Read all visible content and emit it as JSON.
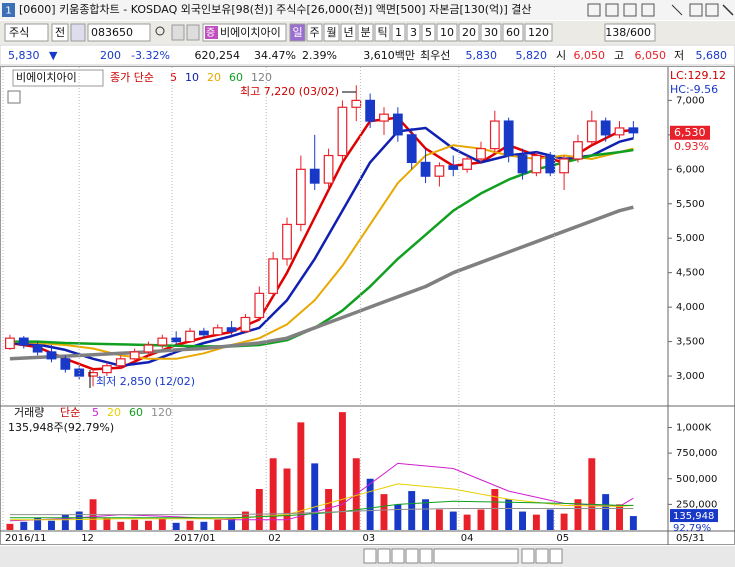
{
  "window": {
    "id": "1",
    "title": "[0600] 키움종합차트 - KOSDAQ 외국인보유[98(천)] 주식수[26,000(천)] 액면[500] 자본금[130(억)] 결산"
  },
  "toolbar": {
    "market": "주식",
    "prev": "전",
    "code": "083650",
    "badge": "증",
    "name": "비에이치아이",
    "periods": [
      "일",
      "주",
      "월",
      "년",
      "분",
      "틱",
      "1",
      "3",
      "5",
      "10",
      "20",
      "30",
      "60",
      "120"
    ],
    "count": "138/600"
  },
  "info": {
    "price": "5,830",
    "arrow": "▼",
    "change": "200",
    "rate": "-3.32%",
    "volume": "620,254",
    "turnover": "34.47%",
    "foreign": "2.39%",
    "amount": "3,610백만",
    "best_label": "최우선",
    "ask": "5,830",
    "bid": "5,820",
    "open_label": "시",
    "open": "6,050",
    "high_label": "고",
    "high": "6,050",
    "low_label": "저",
    "low": "5,680"
  },
  "chart_data": [
    {
      "type": "candlestick",
      "title": "비에이치아이",
      "subtitle": "종가 단순",
      "up_color": "#e8202a",
      "down_color": "#1838c8",
      "xlim": [
        -0.5,
        47.5
      ],
      "open": [
        3400,
        3550,
        3450,
        3350,
        3250,
        3100,
        3000,
        3050,
        3150,
        3250,
        3350,
        3450,
        3550,
        3500,
        3650,
        3600,
        3700,
        3650,
        3850,
        4200,
        4700,
        5200,
        6000,
        5800,
        6200,
        6900,
        7000,
        6700,
        6800,
        6500,
        6100,
        5900,
        6050,
        6000,
        6150,
        6300,
        6700,
        6200,
        5950,
        6200,
        5950,
        6150,
        6400,
        6700,
        6500,
        6600
      ],
      "high": [
        3600,
        3580,
        3500,
        3450,
        3300,
        3150,
        3100,
        3200,
        3300,
        3400,
        3500,
        3600,
        3650,
        3700,
        3700,
        3750,
        3800,
        3900,
        4300,
        4800,
        5300,
        6200,
        6500,
        6300,
        7000,
        7220,
        7100,
        6900,
        6900,
        6600,
        6300,
        6100,
        6200,
        6200,
        6400,
        6850,
        6750,
        6300,
        6250,
        6250,
        6200,
        6500,
        6850,
        6750,
        6700,
        6700
      ],
      "low": [
        3380,
        3400,
        3300,
        3200,
        3050,
        2950,
        2850,
        3000,
        3100,
        3200,
        3300,
        3400,
        3450,
        3480,
        3550,
        3580,
        3600,
        3620,
        3800,
        4150,
        4600,
        5100,
        5700,
        5700,
        6100,
        6700,
        6600,
        6500,
        6400,
        6000,
        5800,
        5750,
        5900,
        5950,
        6100,
        6250,
        6100,
        5850,
        5900,
        5900,
        5700,
        6100,
        6350,
        6400,
        6450,
        6450
      ],
      "close": [
        3550,
        3450,
        3350,
        3250,
        3100,
        3000,
        3050,
        3150,
        3250,
        3350,
        3450,
        3550,
        3500,
        3650,
        3600,
        3700,
        3650,
        3850,
        4200,
        4700,
        5200,
        6000,
        5800,
        6200,
        6900,
        7000,
        6700,
        6800,
        6500,
        6100,
        5900,
        6050,
        6000,
        6150,
        6300,
        6700,
        6200,
        5950,
        6200,
        5950,
        6150,
        6400,
        6700,
        6500,
        6600,
        6530
      ],
      "series": [
        {
          "name": "5",
          "color": "#e00000",
          "x": [
            0,
            2,
            4,
            6,
            8,
            10,
            12,
            14,
            16,
            18,
            20,
            22,
            24,
            26,
            28,
            30,
            32,
            34,
            36,
            38,
            40,
            42,
            44,
            45
          ],
          "values": [
            3480,
            3420,
            3250,
            3100,
            3120,
            3300,
            3450,
            3560,
            3640,
            3820,
            4500,
            5300,
            6100,
            6700,
            6750,
            6300,
            6050,
            6100,
            6350,
            6200,
            6100,
            6350,
            6550,
            6570
          ]
        },
        {
          "name": "10",
          "color": "#1020b0",
          "x": [
            0,
            2,
            4,
            6,
            8,
            10,
            12,
            14,
            16,
            18,
            20,
            22,
            24,
            26,
            28,
            30,
            32,
            34,
            36,
            38,
            40,
            42,
            44,
            45
          ],
          "values": [
            3480,
            3460,
            3380,
            3250,
            3150,
            3200,
            3350,
            3480,
            3580,
            3700,
            4100,
            4700,
            5400,
            6100,
            6550,
            6600,
            6300,
            6100,
            6200,
            6250,
            6150,
            6200,
            6400,
            6450
          ]
        },
        {
          "name": "20",
          "color": "#e8a800",
          "x": [
            0,
            2,
            4,
            6,
            8,
            10,
            12,
            14,
            16,
            18,
            20,
            22,
            24,
            26,
            28,
            30,
            32,
            34,
            36,
            38,
            40,
            42,
            44,
            45
          ],
          "values": [
            3500,
            3480,
            3450,
            3400,
            3300,
            3250,
            3250,
            3330,
            3450,
            3550,
            3750,
            4100,
            4600,
            5200,
            5800,
            6200,
            6350,
            6300,
            6200,
            6150,
            6200,
            6150,
            6250,
            6300
          ]
        },
        {
          "name": "60",
          "color": "#10a020",
          "x": [
            0,
            2,
            4,
            6,
            8,
            10,
            12,
            14,
            16,
            18,
            20,
            22,
            24,
            26,
            28,
            30,
            32,
            34,
            36,
            38,
            40,
            42,
            44,
            45
          ],
          "values": [
            3500,
            3500,
            3480,
            3470,
            3460,
            3450,
            3440,
            3430,
            3430,
            3450,
            3520,
            3700,
            3950,
            4300,
            4700,
            5050,
            5400,
            5650,
            5850,
            6000,
            6100,
            6200,
            6250,
            6280
          ]
        },
        {
          "name": "120",
          "color": "#808080",
          "x": [
            0,
            2,
            4,
            6,
            8,
            10,
            12,
            14,
            16,
            18,
            20,
            22,
            24,
            26,
            28,
            30,
            32,
            34,
            36,
            38,
            40,
            42,
            44,
            45
          ],
          "values": [
            3250,
            3270,
            3290,
            3310,
            3330,
            3350,
            3380,
            3400,
            3440,
            3480,
            3550,
            3700,
            3850,
            4000,
            4150,
            4300,
            4500,
            4650,
            4800,
            4950,
            5100,
            5250,
            5400,
            5450
          ]
        }
      ],
      "ylim": [
        2580,
        7470
      ],
      "yticks": [
        {
          "value": 3000,
          "label": "3,000"
        },
        {
          "value": 3500,
          "label": "3,500"
        },
        {
          "value": 4000,
          "label": "4,000"
        },
        {
          "value": 4500,
          "label": "4,500"
        },
        {
          "value": 5000,
          "label": "5,000"
        },
        {
          "value": 5500,
          "label": "5,500"
        },
        {
          "value": 6000,
          "label": "6,000"
        },
        {
          "value": 6500,
          "label": "6,500"
        },
        {
          "value": 7000,
          "label": "7,000"
        }
      ],
      "annotations": [
        "최고 7,220 (03/02)",
        "최저 2,850 (12/02)"
      ],
      "lc": "LC:129.12",
      "hc": "HC:-9.56",
      "last_label": "6,530",
      "change_label": "0.93%"
    },
    {
      "type": "bar",
      "title": "거래량",
      "subtitle": "단순",
      "caption": "135,948주(92.79%)",
      "xlim": [
        -0.5,
        47.5
      ],
      "values": [
        60000,
        80000,
        120000,
        90000,
        150000,
        180000,
        300000,
        120000,
        80000,
        100000,
        90000,
        110000,
        70000,
        90000,
        80000,
        100000,
        120000,
        180000,
        400000,
        700000,
        600000,
        1050000,
        650000,
        400000,
        1150000,
        700000,
        500000,
        350000,
        250000,
        380000,
        300000,
        200000,
        180000,
        150000,
        200000,
        400000,
        300000,
        180000,
        150000,
        200000,
        160000,
        300000,
        700000,
        350000,
        250000,
        135948
      ],
      "series": [
        {
          "name": "5",
          "color": "#d020d0",
          "x": [
            0,
            4,
            8,
            12,
            16,
            20,
            24,
            28,
            32,
            36,
            40,
            44,
            45
          ],
          "values": [
            90000,
            110000,
            150000,
            130000,
            100000,
            100000,
            250000,
            650000,
            600000,
            380000,
            260000,
            230000,
            310000
          ]
        },
        {
          "name": "20",
          "color": "#e8d000",
          "x": [
            0,
            4,
            8,
            12,
            16,
            20,
            24,
            28,
            32,
            36,
            40,
            44,
            45
          ],
          "values": [
            100000,
            100000,
            110000,
            110000,
            110000,
            150000,
            300000,
            450000,
            400000,
            300000,
            240000,
            230000,
            240000
          ]
        },
        {
          "name": "60",
          "color": "#10a020",
          "x": [
            0,
            4,
            8,
            12,
            16,
            20,
            24,
            28,
            32,
            36,
            40,
            44,
            45
          ],
          "values": [
            120000,
            120000,
            120000,
            120000,
            120000,
            140000,
            180000,
            250000,
            280000,
            270000,
            260000,
            240000,
            240000
          ]
        },
        {
          "name": "120",
          "color": "#909090",
          "x": [
            0,
            4,
            8,
            12,
            16,
            20,
            24,
            28,
            32,
            36,
            40,
            44,
            45
          ],
          "values": [
            150000,
            150000,
            150000,
            150000,
            150000,
            160000,
            180000,
            200000,
            210000,
            210000,
            210000,
            210000,
            210000
          ]
        }
      ],
      "ylim": [
        0,
        1200000
      ],
      "yticks": [
        {
          "value": 250000,
          "label": "250,000"
        },
        {
          "value": 500000,
          "label": "500,000"
        },
        {
          "value": 750000,
          "label": "750,000"
        },
        {
          "value": 1000000,
          "label": "1,000K"
        }
      ],
      "xticks": [
        {
          "value": -0.5,
          "label": "2016/11"
        },
        {
          "value": 5,
          "label": "12"
        },
        {
          "value": 11.7,
          "label": "2017/01"
        },
        {
          "value": 18.5,
          "label": "02"
        },
        {
          "value": 25.3,
          "label": "03"
        },
        {
          "value": 32.4,
          "label": "04"
        },
        {
          "value": 39.3,
          "label": "05"
        }
      ],
      "last_date": "05/31",
      "last_label": "135,948",
      "rate_label": "92.79%"
    }
  ]
}
